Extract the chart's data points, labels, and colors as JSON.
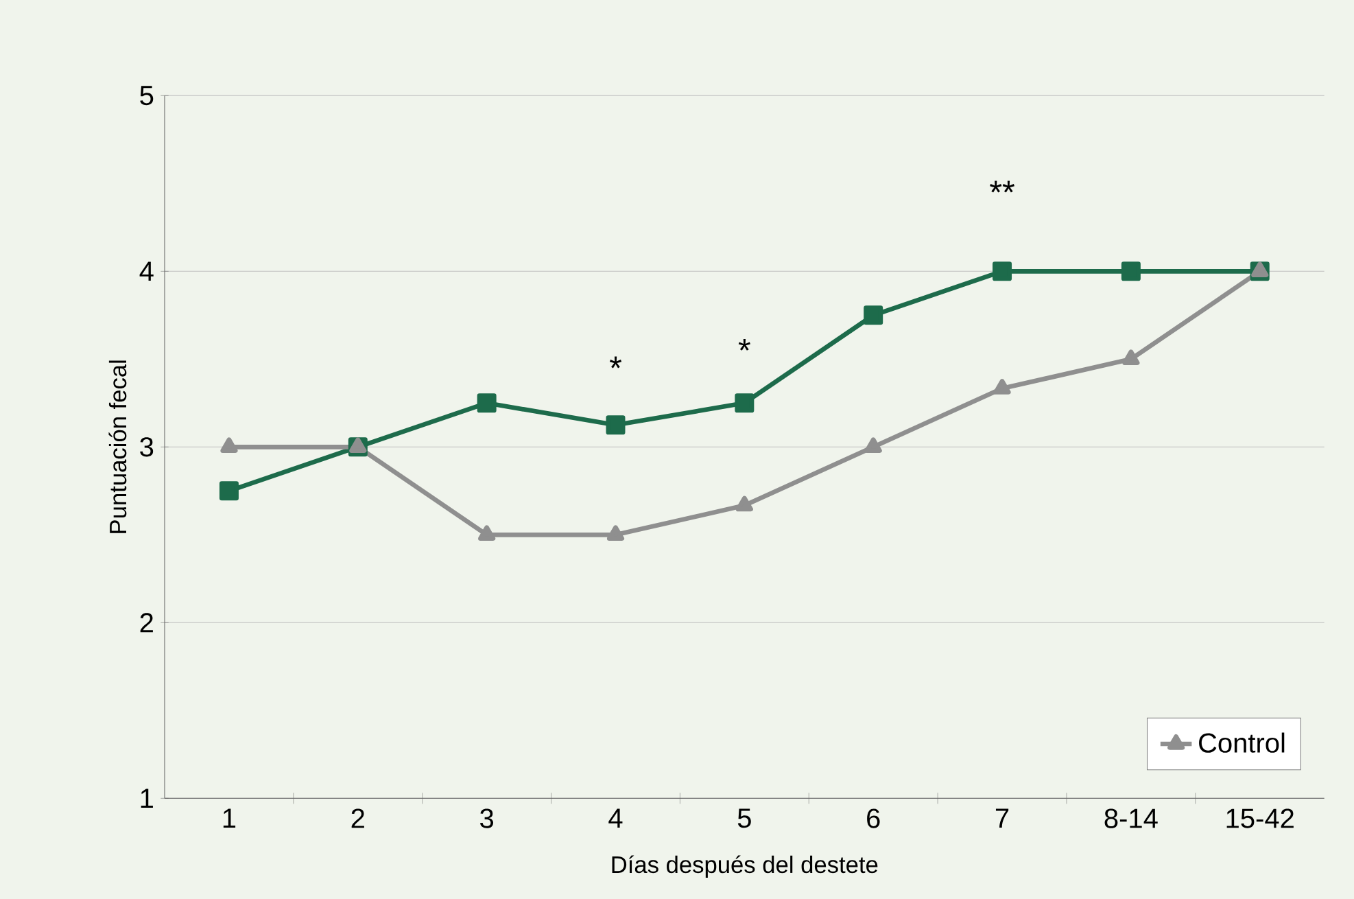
{
  "chart_data": {
    "type": "line",
    "xlabel": "Días después del destete",
    "ylabel": "Puntuación fecal",
    "categories": [
      "1",
      "2",
      "3",
      "4",
      "5",
      "6",
      "7",
      "8-14",
      "15-42"
    ],
    "series": [
      {
        "color": "#1d6b4b",
        "marker": "square",
        "values": [
          2.75,
          3,
          3.25,
          3.125,
          3.25,
          3.75,
          4,
          4,
          4
        ]
      },
      {
        "name": "Control",
        "color": "#8f8f8f",
        "marker": "triangle",
        "values": [
          3,
          3,
          2.5,
          2.5,
          2.667,
          3,
          3.333,
          3.5,
          4
        ]
      }
    ],
    "ylim": [
      1,
      5
    ],
    "yticks": [
      1,
      2,
      3,
      4,
      5
    ],
    "grid": "y",
    "legend": "bottom right",
    "line_style": "solid",
    "annotations": [
      "*",
      "*",
      "**"
    ]
  }
}
